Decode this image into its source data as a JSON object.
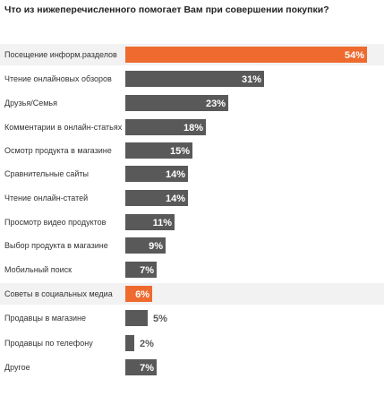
{
  "chart_data": {
    "type": "bar",
    "orientation": "horizontal",
    "title": "Что из нижеперечисленного помогает Вам при совершении покупки?",
    "xlim": [
      0,
      54
    ],
    "grid": false,
    "colors": {
      "bar": "#595959",
      "highlight": "#ee6a2e",
      "row_highlight_bg": "#f2f2f2",
      "label_on_bar": "#ffffff",
      "label_outside": "#595959"
    },
    "categories": [
      "Посещение информ.разделов",
      "Чтение онлайновых обзоров",
      "Друзья/Семья",
      "Комментарии в онлайн-статьях",
      "Осмотр продукта в магазине",
      "Сравнительные сайты",
      "Чтение онлайн-статей",
      "Просмотр видео продуктов",
      "Выбор продукта в магазине",
      "Мобильный поиск",
      "Советы в социальных медиа",
      "Продавцы в магазине",
      "Продавцы по телефону",
      "Другое"
    ],
    "values": [
      54,
      31,
      23,
      18,
      15,
      14,
      14,
      11,
      9,
      7,
      6,
      5,
      2,
      7
    ],
    "value_labels": [
      "54%",
      "31%",
      "23%",
      "18%",
      "15%",
      "14%",
      "14%",
      "11%",
      "9%",
      "7%",
      "6%",
      "5%",
      "2%",
      "7%"
    ],
    "highlighted": [
      0,
      10
    ],
    "label_outside": [
      11,
      12
    ]
  }
}
